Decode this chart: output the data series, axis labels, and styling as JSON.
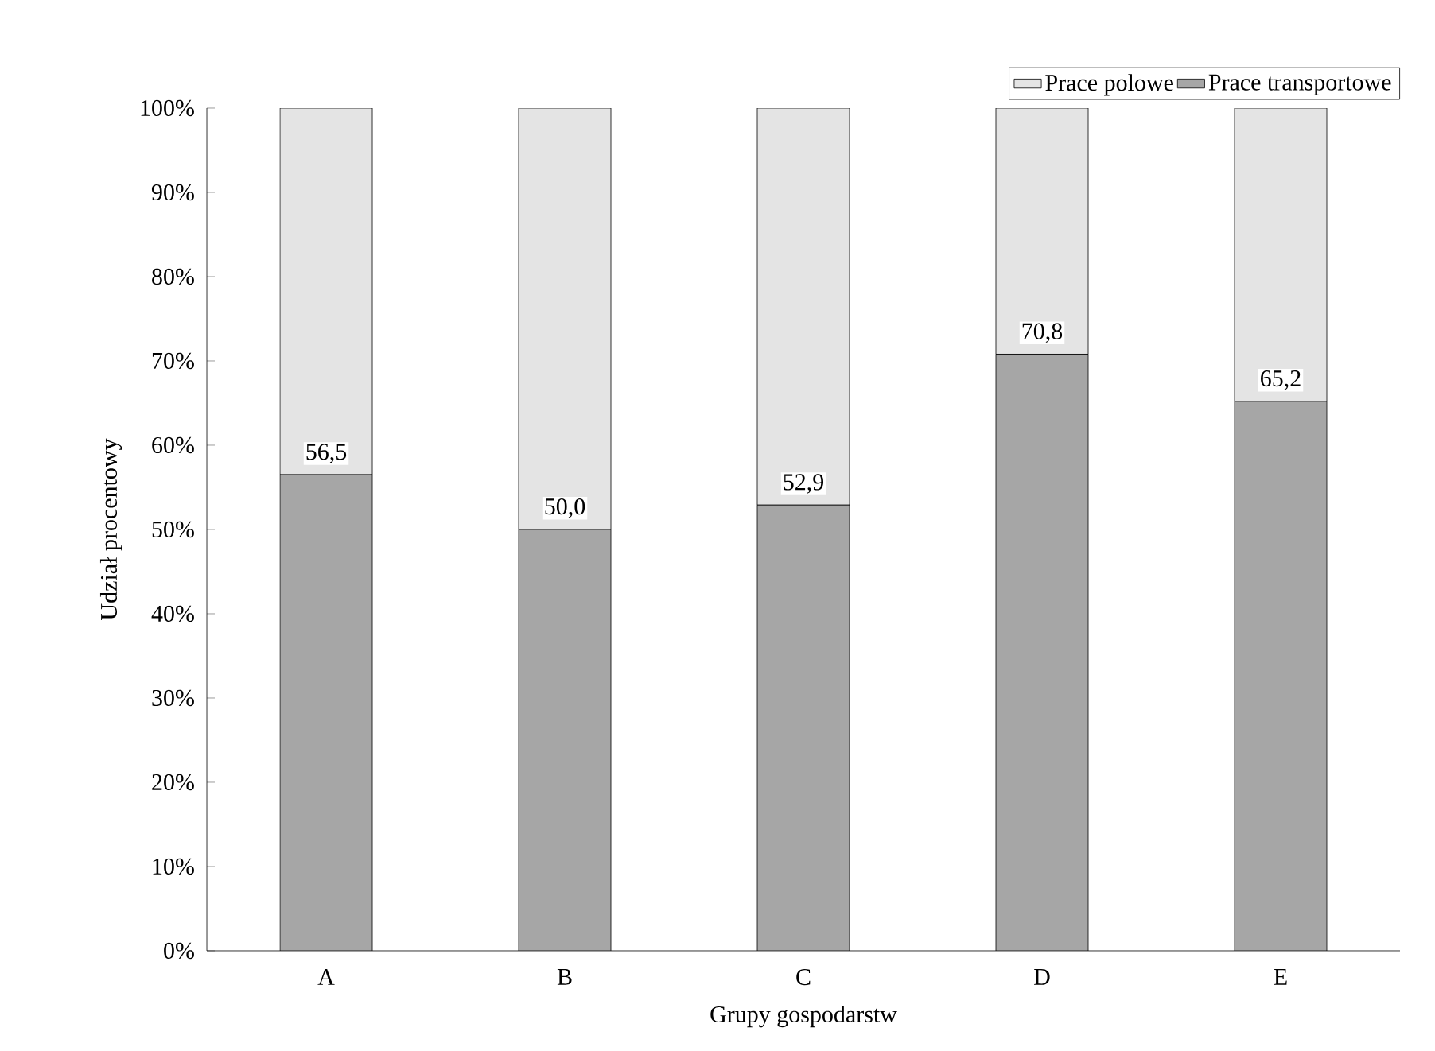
{
  "chart_data": {
    "type": "bar",
    "stacked": true,
    "xlabel": "Grupy gospodarstw",
    "ylabel": "Udział procentowy",
    "categories": [
      "A",
      "B",
      "C",
      "D",
      "E"
    ],
    "series": [
      {
        "name": "Prace transportowe",
        "color": "#a6a6a6",
        "values": [
          56.5,
          50.0,
          52.9,
          70.8,
          65.2
        ],
        "value_labels": [
          "56,5",
          "50,0",
          "52,9",
          "70,8",
          "65,2"
        ]
      },
      {
        "name": "Prace polowe",
        "color": "#e4e4e4",
        "values": [
          43.5,
          50.0,
          47.1,
          29.2,
          34.8
        ]
      }
    ],
    "ylim": [
      0,
      100
    ],
    "yticks": [
      {
        "value": 0,
        "label": "0%"
      },
      {
        "value": 10,
        "label": "10%"
      },
      {
        "value": 20,
        "label": "20%"
      },
      {
        "value": 30,
        "label": "30%"
      },
      {
        "value": 40,
        "label": "40%"
      },
      {
        "value": 50,
        "label": "50%"
      },
      {
        "value": 60,
        "label": "60%"
      },
      {
        "value": 70,
        "label": "70%"
      },
      {
        "value": 80,
        "label": "80%"
      },
      {
        "value": 90,
        "label": "90%"
      },
      {
        "value": 100,
        "label": "100%"
      }
    ],
    "legend": "top right",
    "grid": false
  }
}
